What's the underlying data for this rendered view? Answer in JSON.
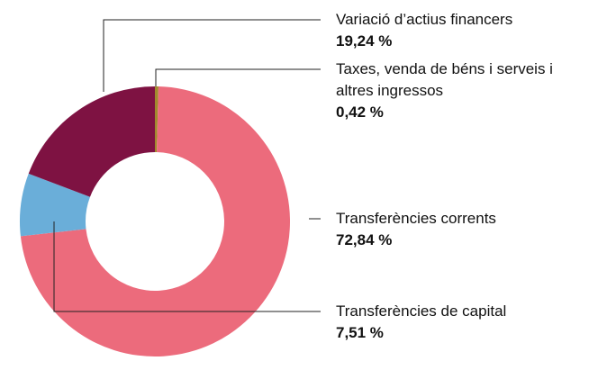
{
  "chart_data": {
    "type": "donut",
    "categories": [
      "Taxes, venda de béns i serveis i altres ingressos",
      "Transferències corrents",
      "Transferències de capital",
      "Variació d’actius financers"
    ],
    "values": [
      0.42,
      72.84,
      7.51,
      19.24
    ],
    "value_labels": [
      "0,42 %",
      "72,84 %",
      "7,51 %",
      "19,24 %"
    ],
    "colors": [
      "#a08a2c",
      "#ec6b7c",
      "#6aaed9",
      "#7e1242"
    ]
  }
}
